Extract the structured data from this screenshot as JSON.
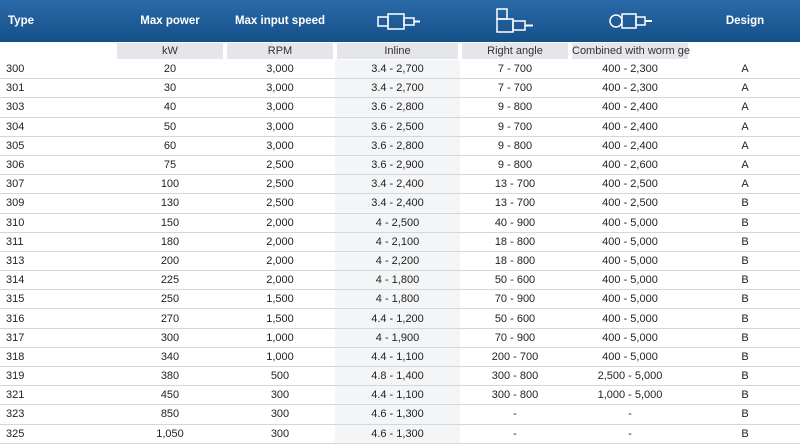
{
  "columns": [
    {
      "title": "Type"
    },
    {
      "title": "Max power",
      "unit": "kW"
    },
    {
      "title": "Max input speed",
      "unit": "RPM"
    },
    {
      "unit": "Inline"
    },
    {
      "unit": "Right angle"
    },
    {
      "unit": "Combined with worm gear"
    },
    {
      "title": "Design"
    }
  ],
  "rows": [
    [
      "300",
      "20",
      "3,000",
      "3.4 - 2,700",
      "7 - 700",
      "400 - 2,300",
      "A"
    ],
    [
      "301",
      "30",
      "3,000",
      "3.4 - 2,700",
      "7 - 700",
      "400 - 2,300",
      "A"
    ],
    [
      "303",
      "40",
      "3,000",
      "3.6 - 2,800",
      "9 - 800",
      "400 - 2,400",
      "A"
    ],
    [
      "304",
      "50",
      "3,000",
      "3.6 - 2,500",
      "9 - 700",
      "400 - 2,400",
      "A"
    ],
    [
      "305",
      "60",
      "3,000",
      "3.6 - 2,800",
      "9 - 800",
      "400 - 2,400",
      "A"
    ],
    [
      "306",
      "75",
      "2,500",
      "3.6 - 2,900",
      "9 - 800",
      "400 - 2,600",
      "A"
    ],
    [
      "307",
      "100",
      "2,500",
      "3.4 - 2,400",
      "13 - 700",
      "400 - 2,500",
      "A"
    ],
    [
      "309",
      "130",
      "2,500",
      "3.4 - 2,400",
      "13 - 700",
      "400 - 2,500",
      "B"
    ],
    [
      "310",
      "150",
      "2,000",
      "4 - 2,500",
      "40 - 900",
      "400 - 5,000",
      "B"
    ],
    [
      "311",
      "180",
      "2,000",
      "4 - 2,100",
      "18 - 800",
      "400 - 5,000",
      "B"
    ],
    [
      "313",
      "200",
      "2,000",
      "4 - 2,200",
      "18 - 800",
      "400 - 5,000",
      "B"
    ],
    [
      "314",
      "225",
      "2,000",
      "4 - 1,800",
      "50 - 600",
      "400 - 5,000",
      "B"
    ],
    [
      "315",
      "250",
      "1,500",
      "4 - 1,800",
      "70 - 900",
      "400 - 5,000",
      "B"
    ],
    [
      "316",
      "270",
      "1,500",
      "4.4 - 1,200",
      "50 - 600",
      "400 - 5,000",
      "B"
    ],
    [
      "317",
      "300",
      "1,000",
      "4 - 1,900",
      "70 - 900",
      "400 - 5,000",
      "B"
    ],
    [
      "318",
      "340",
      "1,000",
      "4.4 - 1,100",
      "200 - 700",
      "400 - 5,000",
      "B"
    ],
    [
      "319",
      "380",
      "500",
      "4.8 - 1,400",
      "300 - 800",
      "2,500 - 5,000",
      "B"
    ],
    [
      "321",
      "450",
      "300",
      "4.4 - 1,100",
      "300 - 800",
      "1,000 - 5,000",
      "B"
    ],
    [
      "323",
      "850",
      "300",
      "4.6 - 1,300",
      "-",
      "-",
      "B"
    ],
    [
      "325",
      "1,050",
      "300",
      "4.6 - 1,300",
      "-",
      "-",
      "B"
    ]
  ]
}
